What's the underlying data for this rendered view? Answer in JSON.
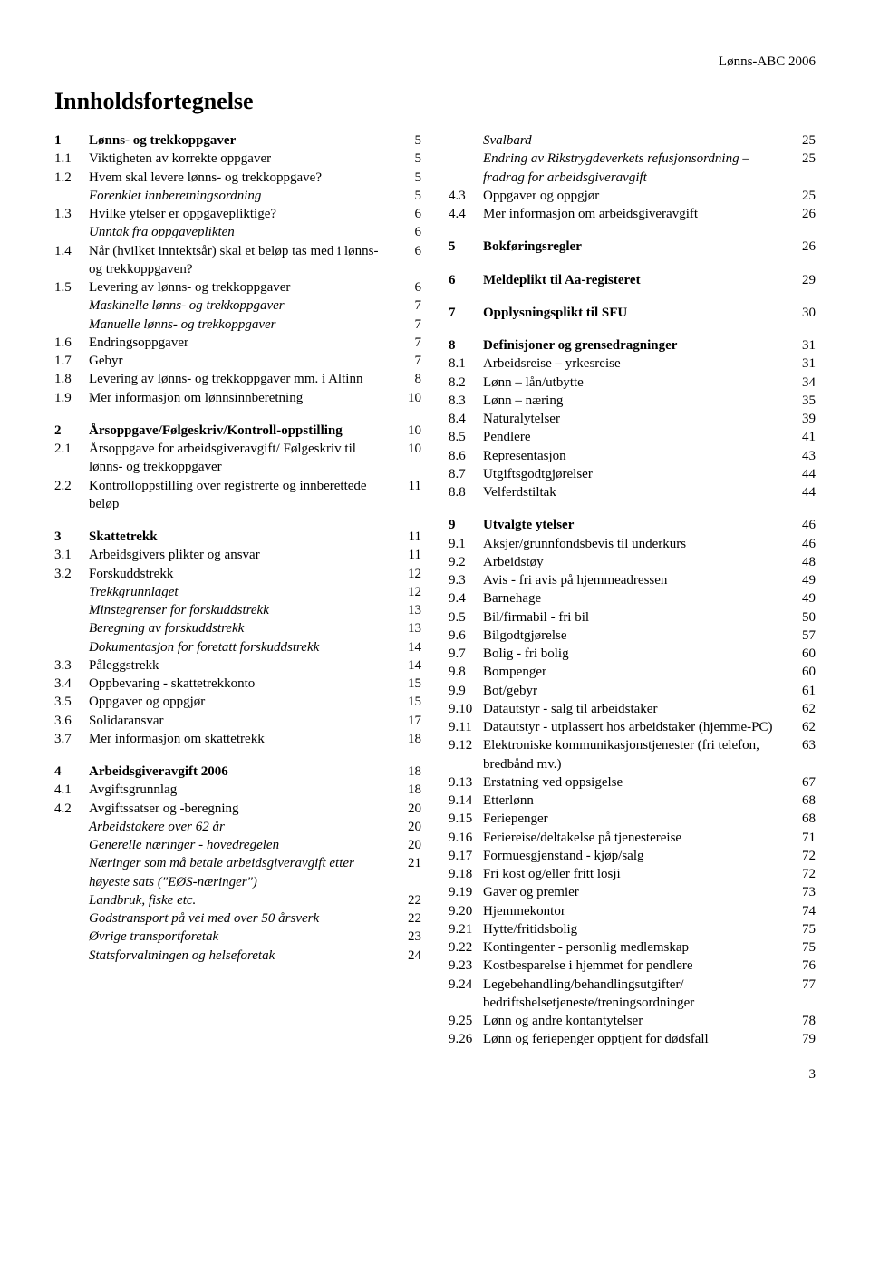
{
  "header": "Lønns-ABC 2006",
  "title": "Innholdsfortegnelse",
  "footerPage": "3",
  "left": [
    {
      "n": "1",
      "t": "Lønns- og trekkoppgaver",
      "p": "5",
      "b": true,
      "g": false
    },
    {
      "n": "1.1",
      "t": "Viktigheten av korrekte oppgaver",
      "p": "5"
    },
    {
      "n": "1.2",
      "t": "Hvem skal levere lønns- og trekkoppgave?",
      "p": "5"
    },
    {
      "n": "",
      "t": "Forenklet innberetningsordning",
      "p": "5",
      "i": true
    },
    {
      "n": "1.3",
      "t": "Hvilke ytelser er oppgavepliktige?",
      "p": "6"
    },
    {
      "n": "",
      "t": "Unntak fra oppgaveplikten",
      "p": "6",
      "i": true
    },
    {
      "n": "1.4",
      "t": "Når (hvilket inntektsår) skal et beløp tas med i lønns- og trekkoppgaven?",
      "p": "6"
    },
    {
      "n": "1.5",
      "t": "Levering av lønns- og trekkoppgaver",
      "p": "6"
    },
    {
      "n": "",
      "t": "Maskinelle lønns- og trekkoppgaver",
      "p": "7",
      "i": true
    },
    {
      "n": "",
      "t": "Manuelle lønns- og trekkoppgaver",
      "p": "7",
      "i": true
    },
    {
      "n": "1.6",
      "t": "Endringsoppgaver",
      "p": "7"
    },
    {
      "n": "1.7",
      "t": "Gebyr",
      "p": "7"
    },
    {
      "n": "1.8",
      "t": "Levering av lønns- og trekkoppgaver mm. i Altinn",
      "p": "8"
    },
    {
      "n": "1.9",
      "t": "Mer informasjon om lønnsinnberetning",
      "p": "10"
    },
    {
      "gap": true
    },
    {
      "n": "2",
      "t": "Årsoppgave/Følgeskriv/Kontroll-oppstilling",
      "p": "10",
      "b": true
    },
    {
      "n": "2.1",
      "t": "Årsoppgave for arbeidsgiveravgift/ Følgeskriv til lønns- og trekkoppgaver",
      "p": "10"
    },
    {
      "n": "2.2",
      "t": "Kontrolloppstilling over registrerte og innberettede beløp",
      "p": "11"
    },
    {
      "gap": true
    },
    {
      "n": "3",
      "t": "Skattetrekk",
      "p": "11",
      "b": true
    },
    {
      "n": "3.1",
      "t": "Arbeidsgivers plikter og ansvar",
      "p": "11"
    },
    {
      "n": "3.2",
      "t": "Forskuddstrekk",
      "p": "12"
    },
    {
      "n": "",
      "t": "Trekkgrunnlaget",
      "p": "12",
      "i": true
    },
    {
      "n": "",
      "t": "Minstegrenser for forskuddstrekk",
      "p": "13",
      "i": true
    },
    {
      "n": "",
      "t": "Beregning av forskuddstrekk",
      "p": "13",
      "i": true
    },
    {
      "n": "",
      "t": "Dokumentasjon for foretatt forskuddstrekk",
      "p": "14",
      "i": true
    },
    {
      "n": "3.3",
      "t": "Påleggstrekk",
      "p": "14"
    },
    {
      "n": "3.4",
      "t": "Oppbevaring - skattetrekkonto",
      "p": "15"
    },
    {
      "n": "3.5",
      "t": "Oppgaver og oppgjør",
      "p": "15"
    },
    {
      "n": "3.6",
      "t": "Solidaransvar",
      "p": "17"
    },
    {
      "n": "3.7",
      "t": "Mer informasjon om skattetrekk",
      "p": "18"
    },
    {
      "gap": true
    },
    {
      "n": "4",
      "t": "Arbeidsgiveravgift 2006",
      "p": "18",
      "b": true
    },
    {
      "n": "4.1",
      "t": "Avgiftsgrunnlag",
      "p": "18"
    },
    {
      "n": "4.2",
      "t": "Avgiftssatser og -beregning",
      "p": "20"
    },
    {
      "n": "",
      "t": "Arbeidstakere over 62 år",
      "p": "20",
      "i": true
    },
    {
      "n": "",
      "t": "Generelle næringer - hovedregelen",
      "p": "20",
      "i": true
    },
    {
      "n": "",
      "t": "Næringer som må betale arbeidsgiveravgift etter høyeste sats (\"EØS-næringer\")",
      "p": "21",
      "i": true
    },
    {
      "n": "",
      "t": "Landbruk, fiske etc.",
      "p": "22",
      "i": true
    },
    {
      "n": "",
      "t": "Godstransport på vei med over 50 årsverk",
      "p": "22",
      "i": true
    },
    {
      "n": "",
      "t": "Øvrige transportforetak",
      "p": "23",
      "i": true
    },
    {
      "n": "",
      "t": "Statsforvaltningen og helseforetak",
      "p": "24",
      "i": true
    }
  ],
  "right": [
    {
      "n": "",
      "t": "Svalbard",
      "p": "25",
      "i": true
    },
    {
      "n": "",
      "t": "Endring av Rikstrygdeverkets refusjonsordning – fradrag for arbeidsgiveravgift",
      "p": "25",
      "i": true
    },
    {
      "n": "4.3",
      "t": "Oppgaver og oppgjør",
      "p": "25"
    },
    {
      "n": "4.4",
      "t": "Mer informasjon om arbeidsgiveravgift",
      "p": "26"
    },
    {
      "gap": true
    },
    {
      "n": "5",
      "t": "Bokføringsregler",
      "p": "26",
      "b": true
    },
    {
      "gap": true
    },
    {
      "n": "6",
      "t": "Meldeplikt til Aa-registeret",
      "p": "29",
      "b": true
    },
    {
      "gap": true
    },
    {
      "n": "7",
      "t": "Opplysningsplikt til SFU",
      "p": "30",
      "b": true
    },
    {
      "gap": true
    },
    {
      "n": "8",
      "t": "Definisjoner og grensedragninger",
      "p": "31",
      "b": true
    },
    {
      "n": "8.1",
      "t": "Arbeidsreise – yrkesreise",
      "p": "31"
    },
    {
      "n": "8.2",
      "t": "Lønn – lån/utbytte",
      "p": "34"
    },
    {
      "n": "8.3",
      "t": "Lønn – næring",
      "p": "35"
    },
    {
      "n": "8.4",
      "t": "Naturalytelser",
      "p": "39"
    },
    {
      "n": "8.5",
      "t": "Pendlere",
      "p": "41"
    },
    {
      "n": "8.6",
      "t": "Representasjon",
      "p": "43"
    },
    {
      "n": "8.7",
      "t": "Utgiftsgodtgjørelser",
      "p": "44"
    },
    {
      "n": "8.8",
      "t": "Velferdstiltak",
      "p": "44"
    },
    {
      "gap": true
    },
    {
      "n": "9",
      "t": "Utvalgte ytelser",
      "p": "46",
      "b": true
    },
    {
      "n": "9.1",
      "t": "Aksjer/grunnfondsbevis til underkurs",
      "p": "46"
    },
    {
      "n": "9.2",
      "t": "Arbeidstøy",
      "p": "48"
    },
    {
      "n": "9.3",
      "t": "Avis - fri avis på hjemmeadressen",
      "p": "49"
    },
    {
      "n": "9.4",
      "t": "Barnehage",
      "p": "49"
    },
    {
      "n": "9.5",
      "t": "Bil/firmabil - fri bil",
      "p": "50"
    },
    {
      "n": "9.6",
      "t": "Bilgodtgjørelse",
      "p": "57"
    },
    {
      "n": "9.7",
      "t": "Bolig - fri bolig",
      "p": "60"
    },
    {
      "n": "9.8",
      "t": "Bompenger",
      "p": "60"
    },
    {
      "n": "9.9",
      "t": "Bot/gebyr",
      "p": "61"
    },
    {
      "n": "9.10",
      "t": "Datautstyr - salg til arbeidstaker",
      "p": "62"
    },
    {
      "n": "9.11",
      "t": "Datautstyr - utplassert hos arbeidstaker (hjemme-PC)",
      "p": "62"
    },
    {
      "n": "9.12",
      "t": "Elektroniske kommunikasjonstjenester (fri telefon, bredbånd mv.)",
      "p": "63"
    },
    {
      "n": "9.13",
      "t": "Erstatning ved oppsigelse",
      "p": "67"
    },
    {
      "n": "9.14",
      "t": "Etterlønn",
      "p": "68"
    },
    {
      "n": "9.15",
      "t": "Feriepenger",
      "p": "68"
    },
    {
      "n": "9.16",
      "t": "Feriereise/deltakelse på tjenestereise",
      "p": "71"
    },
    {
      "n": "9.17",
      "t": "Formuesgjenstand - kjøp/salg",
      "p": "72"
    },
    {
      "n": "9.18",
      "t": "Fri kost og/eller fritt losji",
      "p": "72"
    },
    {
      "n": "9.19",
      "t": "Gaver og premier",
      "p": "73"
    },
    {
      "n": "9.20",
      "t": "Hjemmekontor",
      "p": "74"
    },
    {
      "n": "9.21",
      "t": "Hytte/fritidsbolig",
      "p": "75"
    },
    {
      "n": "9.22",
      "t": "Kontingenter - personlig medlemskap",
      "p": "75"
    },
    {
      "n": "9.23",
      "t": "Kostbesparelse i hjemmet for pendlere",
      "p": "76"
    },
    {
      "n": "9.24",
      "t": "Legebehandling/behandlingsutgifter/ bedriftshelsetjeneste/treningsordninger",
      "p": "77"
    },
    {
      "n": "9.25",
      "t": "Lønn og andre kontantytelser",
      "p": "78"
    },
    {
      "n": "9.26",
      "t": "Lønn og feriepenger opptjent for dødsfall",
      "p": "79"
    }
  ]
}
